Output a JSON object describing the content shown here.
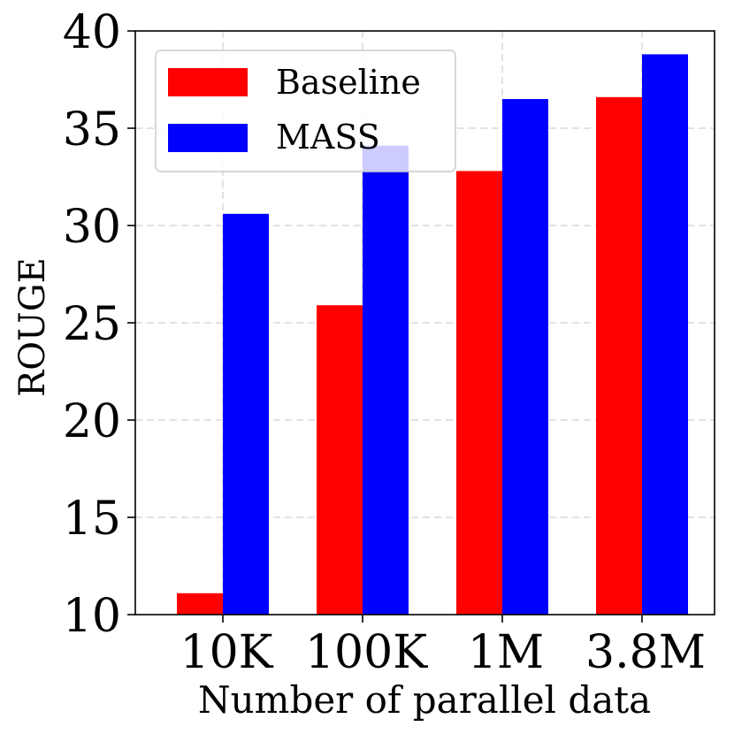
{
  "chart_data": {
    "type": "bar",
    "title": "",
    "xlabel": "Number of parallel data",
    "ylabel": "ROUGE",
    "categories": [
      "10K",
      "100K",
      "1M",
      "3.8M"
    ],
    "series": [
      {
        "name": "Baseline",
        "color": "#ff0000",
        "values": [
          11.1,
          25.9,
          32.8,
          36.6
        ]
      },
      {
        "name": "MASS",
        "color": "#0000ff",
        "values": [
          30.6,
          34.1,
          36.5,
          38.8
        ]
      }
    ],
    "ylim": [
      10,
      40
    ],
    "yticks": [
      "10",
      "15",
      "20",
      "25",
      "30",
      "35",
      "40"
    ],
    "grid": true,
    "legend_position": "top-left"
  }
}
